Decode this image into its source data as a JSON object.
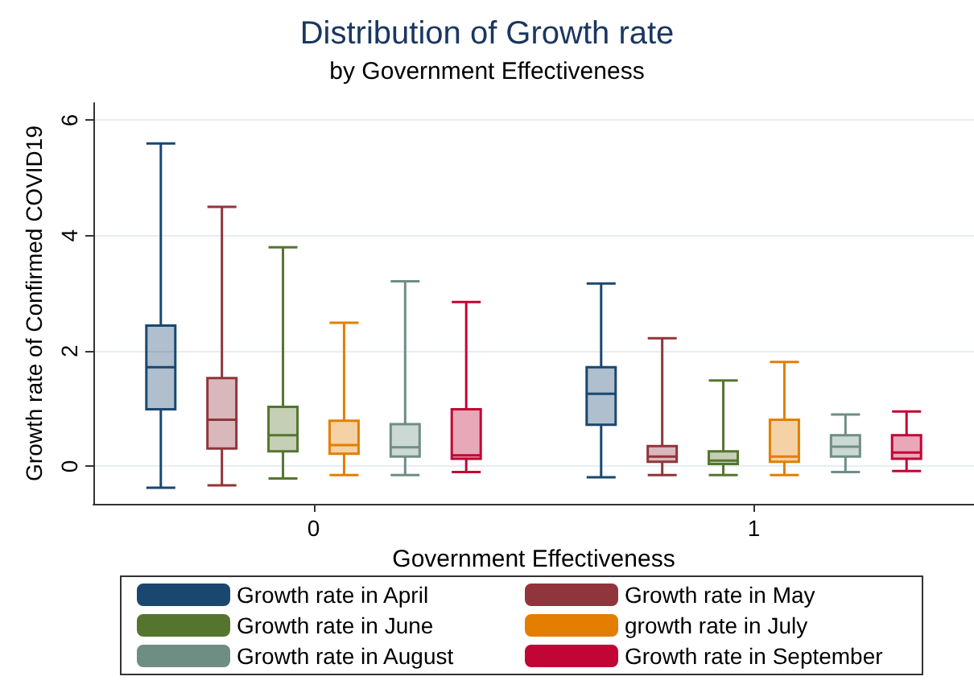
{
  "chart_data": {
    "type": "box",
    "title": "Distribution of Growth rate",
    "subtitle": "by Government Effectiveness",
    "xlabel": "Government Effectiveness",
    "ylabel": "Growth rate of Confirmed COVID19",
    "categories": [
      "0",
      "1"
    ],
    "ylim": [
      -0.65,
      6.3
    ],
    "yticks": [
      0,
      2,
      4,
      6
    ],
    "grid": "y",
    "legend": "bottom",
    "series": [
      {
        "name": "Growth rate in April",
        "color": "#1a476f",
        "boxes": [
          {
            "low": -0.37,
            "q1": 0.99,
            "median": 1.72,
            "q3": 2.44,
            "high": 5.6
          },
          {
            "low": -0.19,
            "q1": 0.72,
            "median": 1.26,
            "q3": 1.72,
            "high": 3.17
          }
        ]
      },
      {
        "name": "Growth rate in May",
        "color": "#90353b",
        "boxes": [
          {
            "low": -0.33,
            "q1": 0.31,
            "median": 0.81,
            "q3": 1.53,
            "high": 4.5
          },
          {
            "low": -0.15,
            "q1": 0.08,
            "median": 0.17,
            "q3": 0.35,
            "high": 2.22
          }
        ]
      },
      {
        "name": "Growth rate in June",
        "color": "#55752f",
        "boxes": [
          {
            "low": -0.21,
            "q1": 0.26,
            "median": 0.54,
            "q3": 1.03,
            "high": 3.8
          },
          {
            "low": -0.15,
            "q1": 0.04,
            "median": 0.1,
            "q3": 0.26,
            "high": 1.49
          }
        ]
      },
      {
        "name": "growth rate in July",
        "color": "#e37e00",
        "boxes": [
          {
            "low": -0.15,
            "q1": 0.22,
            "median": 0.37,
            "q3": 0.79,
            "high": 2.49
          },
          {
            "low": -0.15,
            "q1": 0.08,
            "median": 0.17,
            "q3": 0.81,
            "high": 1.81
          }
        ]
      },
      {
        "name": "Growth rate in August",
        "color": "#6e8e84",
        "boxes": [
          {
            "low": -0.15,
            "q1": 0.17,
            "median": 0.33,
            "q3": 0.73,
            "high": 3.21
          },
          {
            "low": -0.1,
            "q1": 0.17,
            "median": 0.34,
            "q3": 0.54,
            "high": 0.9
          }
        ]
      },
      {
        "name": "Growth rate in September",
        "color": "#c10534",
        "boxes": [
          {
            "low": -0.1,
            "q1": 0.13,
            "median": 0.19,
            "q3": 0.99,
            "high": 2.85
          },
          {
            "low": -0.08,
            "q1": 0.13,
            "median": 0.24,
            "q3": 0.54,
            "high": 0.95
          }
        ]
      }
    ]
  }
}
